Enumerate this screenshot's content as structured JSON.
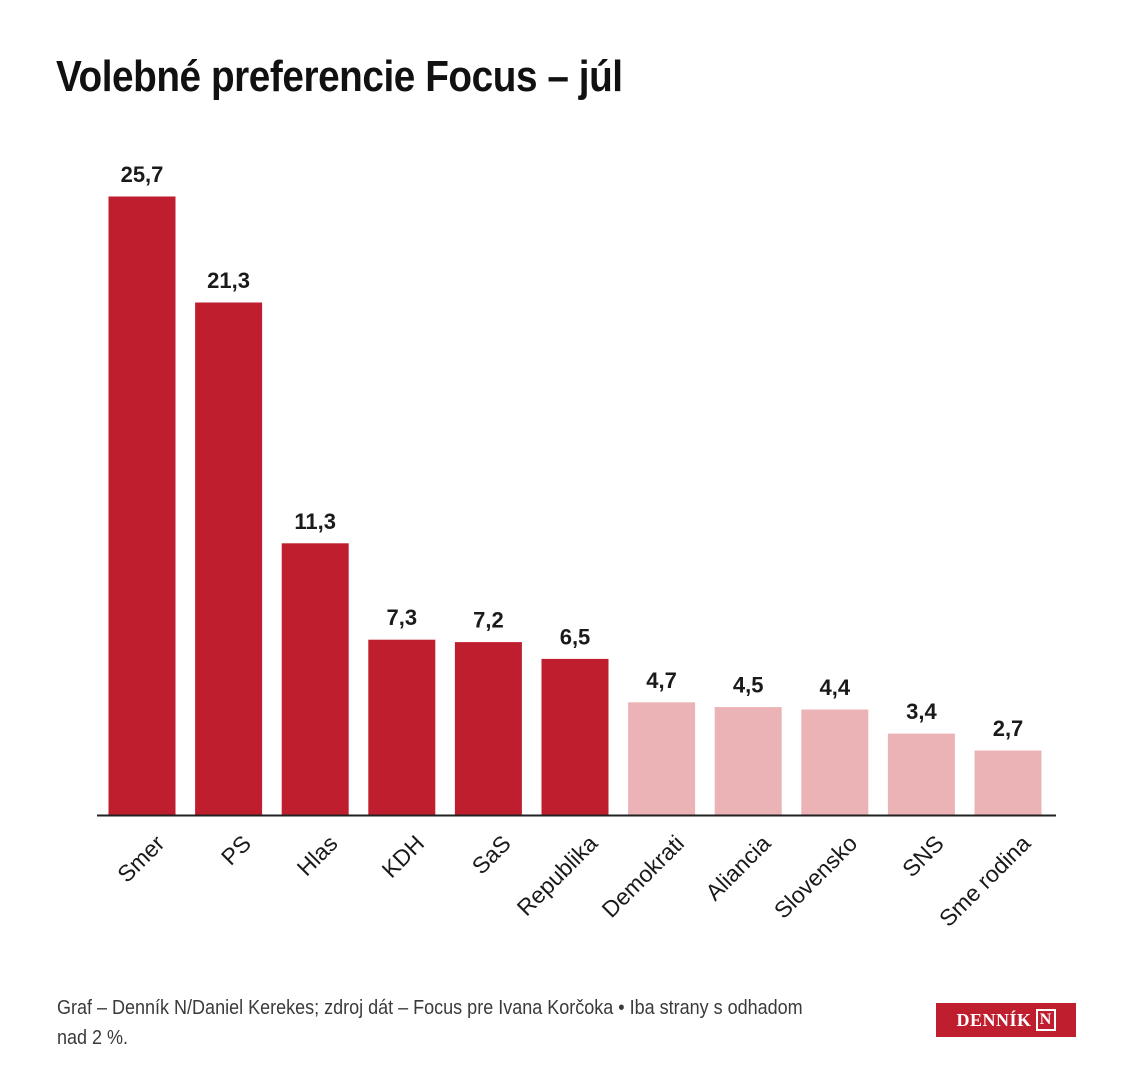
{
  "title": "Volebné preferencie Focus – júl",
  "footer": "Graf – Denník N/Daniel Kerekes; zdroj dát – Focus pre Ivana Korčoka • Iba strany s odhadom nad 2 %.",
  "logo": {
    "text": "DENNÍK",
    "mark": "N"
  },
  "colors": {
    "above_threshold": "#be1e2d",
    "below_threshold": "#ecb3b6",
    "axis": "#222222"
  },
  "chart_data": {
    "type": "bar",
    "title": "Volebné preferencie Focus – júl",
    "categories": [
      "Smer",
      "PS",
      "Hlas",
      "KDH",
      "SaS",
      "Republika",
      "Demokrati",
      "Aliancia",
      "Slovensko",
      "SNS",
      "Sme rodina"
    ],
    "values": [
      25.7,
      21.3,
      11.3,
      7.3,
      7.2,
      6.5,
      4.7,
      4.5,
      4.4,
      3.4,
      2.7
    ],
    "value_labels": [
      "25,7",
      "21,3",
      "11,3",
      "7,3",
      "7,2",
      "6,5",
      "4,7",
      "4,5",
      "4,4",
      "3,4",
      "2,7"
    ],
    "highlighted": [
      true,
      true,
      true,
      true,
      true,
      true,
      false,
      false,
      false,
      false,
      false
    ],
    "xlabel": "",
    "ylabel": "",
    "ylim": [
      0,
      25.7
    ],
    "grid": false,
    "legend": "none"
  }
}
